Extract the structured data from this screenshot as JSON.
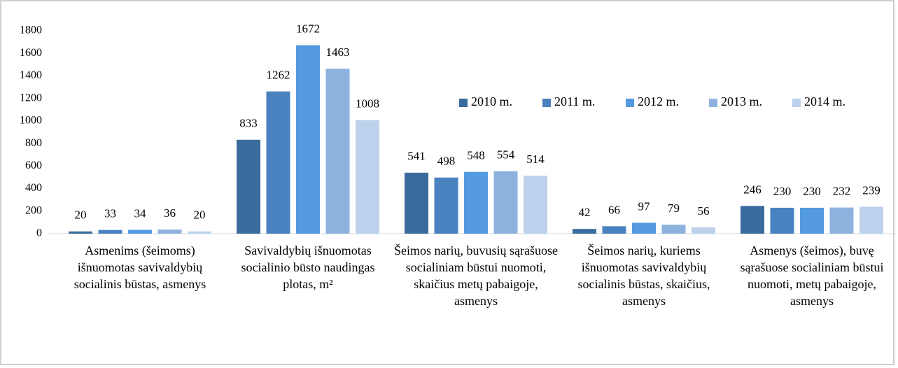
{
  "chart_data": {
    "type": "bar",
    "categories": [
      "Asmenims (šeimoms) išnuomotas savivaldybių socialinis būstas, asmenys",
      "Savivaldybių išnuomotas socialinio būsto naudingas plotas, m²",
      "Šeimos narių, buvusių sąrašuose socialiniam būstui nuomoti, skaičius metų pabaigoje, asmenys",
      "Šeimos narių, kuriems išnuomotas savivaldybių socialinis būstas, skaičius, asmenys",
      "Asmenys (šeimos), buvę sąrašuose socialiniam būstui nuomoti, metų pabaigoje, asmenys"
    ],
    "series": [
      {
        "name": "2010 m.",
        "color": "#3a6b9f",
        "values": [
          20,
          833,
          541,
          42,
          246
        ]
      },
      {
        "name": "2011 m.",
        "color": "#4a82c0",
        "values": [
          33,
          1262,
          498,
          66,
          230
        ]
      },
      {
        "name": "2012 m.",
        "color": "#539ae0",
        "values": [
          34,
          1672,
          548,
          97,
          230
        ]
      },
      {
        "name": "2013 m.",
        "color": "#8db2de",
        "values": [
          36,
          1463,
          554,
          79,
          232
        ]
      },
      {
        "name": "2014 m.",
        "color": "#bcd2ec",
        "values": [
          20,
          1008,
          514,
          56,
          239
        ]
      }
    ],
    "ylim": [
      0,
      1800
    ],
    "yticks": [
      0,
      200,
      400,
      600,
      800,
      1000,
      1200,
      1400,
      1600,
      1800
    ],
    "grid": false,
    "legend": "top-right"
  }
}
